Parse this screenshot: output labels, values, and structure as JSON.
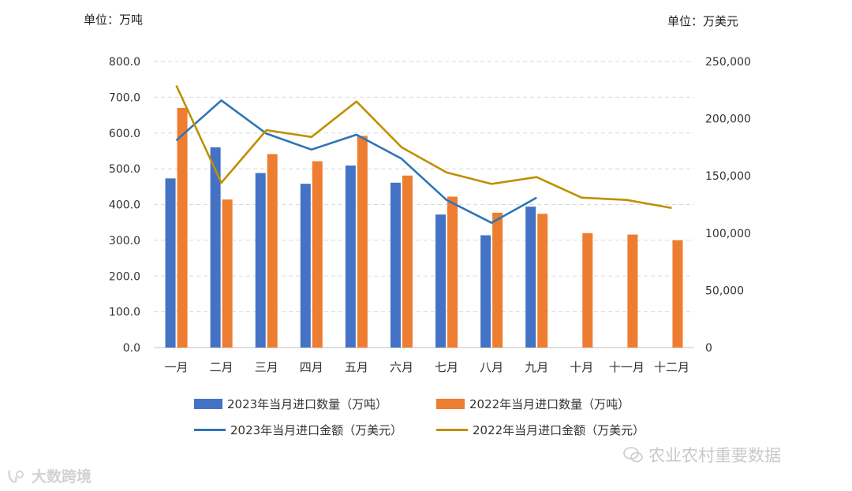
{
  "units": {
    "left": "单位：万吨",
    "right": "单位：万美元"
  },
  "chart_data": {
    "type": "bar+line",
    "categories": [
      "一月",
      "二月",
      "三月",
      "四月",
      "五月",
      "六月",
      "七月",
      "八月",
      "九月",
      "十月",
      "十一月",
      "十二月"
    ],
    "y_left": {
      "ticks": [
        "0.0",
        "100.0",
        "200.0",
        "300.0",
        "400.0",
        "500.0",
        "600.0",
        "700.0",
        "800.0"
      ],
      "ylim": [
        0,
        800
      ],
      "label": "单位：万吨"
    },
    "y_right": {
      "ticks": [
        "0",
        "50,000",
        "100,000",
        "150,000",
        "200,000",
        "250,000"
      ],
      "ylim": [
        0,
        250000
      ],
      "label": "单位：万美元"
    },
    "grid": true,
    "series": [
      {
        "name": "2023年当月进口数量（万吨）",
        "kind": "bar",
        "axis": "left",
        "color": "#4472C4",
        "values": [
          473,
          560,
          488,
          458,
          509,
          461,
          372,
          314,
          394,
          null,
          null,
          null
        ]
      },
      {
        "name": "2022年当月进口数量（万吨）",
        "kind": "bar",
        "axis": "left",
        "color": "#ED7D31",
        "values": [
          670,
          414,
          541,
          521,
          592,
          481,
          422,
          377,
          374,
          320,
          316,
          300
        ]
      },
      {
        "name": "2023年当月进口金额（万美元）",
        "kind": "line",
        "axis": "right",
        "color": "#2E75B6",
        "values": [
          181000,
          216000,
          187000,
          173000,
          186000,
          165000,
          129000,
          109000,
          131000,
          null,
          null,
          null
        ]
      },
      {
        "name": "2022年当月进口金额（万美元）",
        "kind": "line",
        "axis": "right",
        "color": "#BF9000",
        "values": [
          229000,
          144000,
          190000,
          184000,
          215000,
          175000,
          153000,
          143000,
          149000,
          131000,
          129000,
          122000
        ]
      }
    ]
  },
  "watermarks": {
    "left": "大数跨境",
    "right": "农业农村重要数据"
  }
}
